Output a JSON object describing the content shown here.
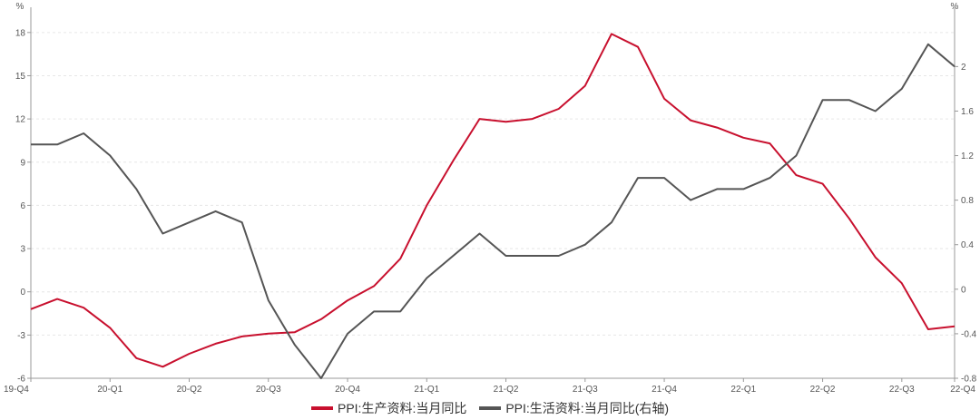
{
  "chart_data": {
    "type": "line",
    "title": "",
    "y_left_unit": "%",
    "y_right_unit": "%",
    "x": [
      "19-Q4",
      "",
      "",
      "20-Q1",
      "",
      "",
      "20-Q2",
      "",
      "",
      "20-Q3",
      "",
      "",
      "20-Q4",
      "",
      "",
      "21-Q1",
      "",
      "",
      "21-Q2",
      "",
      "",
      "21-Q3",
      "",
      "",
      "21-Q4",
      "",
      "",
      "22-Q1",
      "",
      "",
      "22-Q2",
      "",
      "",
      "22-Q3",
      "",
      "22-Q4"
    ],
    "x_ticks": [
      "19-Q4",
      "20-Q1",
      "20-Q2",
      "20-Q3",
      "20-Q4",
      "21-Q1",
      "21-Q2",
      "21-Q3",
      "21-Q4",
      "22-Q1",
      "22-Q2",
      "22-Q3",
      "22-Q4"
    ],
    "y_left": {
      "min": -6,
      "max": 19.5,
      "ticks": [
        -6,
        -3,
        0,
        3,
        6,
        9,
        12,
        15,
        18
      ]
    },
    "y_right": {
      "min": -0.8,
      "max": 2.5,
      "ticks": [
        -0.8,
        -0.4,
        0,
        0.4,
        0.8,
        1.2,
        1.6,
        2
      ]
    },
    "grid": true,
    "legend_position": "bottom",
    "series": [
      {
        "name": "PPI:生产资料:当月同比",
        "axis": "left",
        "color": "#c8102e",
        "values": [
          -1.2,
          -0.5,
          -1.1,
          -2.5,
          -4.6,
          -5.2,
          -4.3,
          -3.6,
          -3.1,
          -2.9,
          -2.8,
          -1.9,
          -0.6,
          0.4,
          2.3,
          6.0,
          9.1,
          12.0,
          11.8,
          12.0,
          12.7,
          14.3,
          17.9,
          17.0,
          13.4,
          11.9,
          11.4,
          10.7,
          10.3,
          8.1,
          7.5,
          5.1,
          2.4,
          0.6,
          -2.6,
          -2.4
        ]
      },
      {
        "name": "PPI:生活资料:当月同比(右轴)",
        "axis": "right",
        "color": "#555555",
        "values": [
          1.3,
          1.3,
          1.4,
          1.2,
          0.9,
          0.5,
          0.6,
          0.7,
          0.6,
          -0.1,
          -0.5,
          -0.8,
          -0.4,
          -0.2,
          -0.2,
          0.1,
          0.3,
          0.5,
          0.3,
          0.3,
          0.3,
          0.4,
          0.6,
          1.0,
          1.0,
          0.8,
          0.9,
          0.9,
          1.0,
          1.2,
          1.7,
          1.7,
          1.6,
          1.8,
          2.2,
          2.0
        ]
      }
    ]
  }
}
